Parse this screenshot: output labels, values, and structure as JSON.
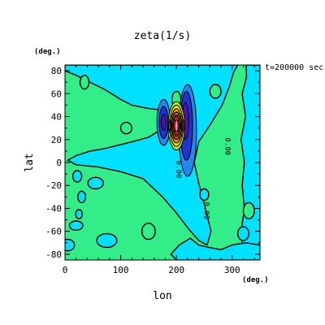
{
  "chart_data": {
    "type": "heatmap",
    "title": "zeta(1/s)",
    "xlabel": "lon",
    "ylabel": "lat",
    "x_unit": "(deg.)",
    "y_unit": "(deg.)",
    "time_label": "t=200000 sec",
    "xlim": [
      0,
      350
    ],
    "ylim": [
      -85,
      85
    ],
    "x_ticks": [
      0,
      100,
      200,
      300
    ],
    "y_ticks": [
      -80,
      -60,
      -40,
      -20,
      0,
      20,
      40,
      60,
      80
    ],
    "contour_labels": [
      {
        "text": "0.00",
        "lon": 200,
        "lat": -6
      },
      {
        "text": "0.00",
        "lon": 288,
        "lat": 14
      },
      {
        "text": "0.00",
        "lon": 250,
        "lat": -42
      }
    ],
    "colors": {
      "background_field": "#33ee88",
      "negative_weak": "#00e0ff",
      "negative_mid": "#2288ee",
      "negative_strong": "#2233cc",
      "negative_core": "#5511aa",
      "positive_weak": "#bbee22",
      "positive_mid": "#ee8833",
      "positive_strong": "#ee3322",
      "positive_core": "#ff88aa",
      "contour_line": "#000000"
    }
  }
}
